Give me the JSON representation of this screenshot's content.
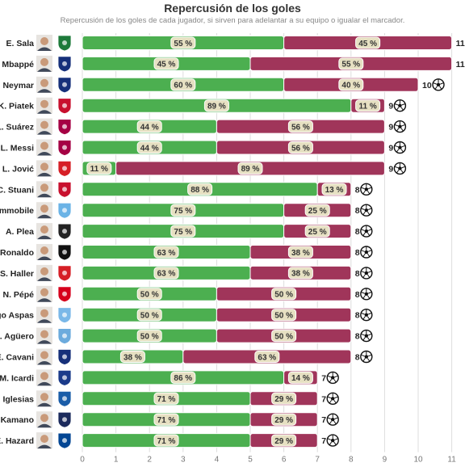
{
  "chart_data": {
    "type": "bar",
    "orientation": "horizontal",
    "stacked": true,
    "title": "Repercusión de los goles",
    "subtitle": "Repercusión de los goles de cada jugador, si sirven para adelantar a su equipo o igualar el marcador.",
    "categories": [
      "E. Sala",
      "Mbappé",
      "Neymar",
      "K. Piatek",
      "L. Suárez",
      "L. Messi",
      "L. Jović",
      "C. Stuani",
      "Immobile",
      "A. Plea",
      "Ronaldo",
      "S. Haller",
      "N. Pépé",
      "Iago Aspas",
      "S. Agüero",
      "E. Cavani",
      "M. Icardi",
      "Iglesias",
      "Kamano",
      "E. Hazard"
    ],
    "category_labels": [
      "E. Sala",
      "Mbappé",
      "Neymar",
      "K. Piatek",
      "L. Suárez",
      "L. Messi",
      "L. Jović",
      "C. Stuani",
      "mmobile",
      "A. Plea",
      "Ronaldo",
      "S. Haller",
      "N. Pépé",
      "go Aspas",
      ". Agüero",
      "E. Cavani",
      "M. Icardi",
      "Iglesias",
      "Kamano",
      "E. Hazard"
    ],
    "totals": [
      11,
      11,
      10,
      9,
      9,
      9,
      9,
      8,
      8,
      8,
      8,
      8,
      8,
      8,
      8,
      8,
      7,
      7,
      7,
      7
    ],
    "series": [
      {
        "values": [
          6,
          5,
          6,
          8,
          4,
          4,
          1,
          7,
          6,
          6,
          5,
          5,
          4,
          4,
          4,
          3,
          6,
          5,
          5,
          5
        ],
        "labels": [
          "55 %",
          "45 %",
          "60 %",
          "89 %",
          "44 %",
          "44 %",
          "11 %",
          "88 %",
          "75 %",
          "75 %",
          "63 %",
          "63 %",
          "50 %",
          "50 %",
          "50 %",
          "38 %",
          "86 %",
          "71 %",
          "71 %",
          "71 %"
        ]
      },
      {
        "values": [
          5,
          6,
          4,
          1,
          5,
          5,
          8,
          1,
          2,
          2,
          3,
          3,
          4,
          4,
          4,
          5,
          1,
          2,
          2,
          2
        ],
        "labels": [
          "45 %",
          "55 %",
          "40 %",
          "11 %",
          "56 %",
          "56 %",
          "89 %",
          "13 %",
          "25 %",
          "25 %",
          "38 %",
          "38 %",
          "50 %",
          "50 %",
          "50 %",
          "63 %",
          "14 %",
          "29 %",
          "29 %",
          "29 %"
        ]
      }
    ],
    "colors": {
      "green": "#4caf50",
      "red": "#a0355a",
      "label_bg": "#e6e0c2",
      "grid": "#dddddd"
    },
    "xlim": [
      0,
      11
    ],
    "x_ticks": [
      "0",
      "1",
      "2",
      "3",
      "4",
      "5",
      "6",
      "7",
      "8",
      "9",
      "10",
      "11"
    ],
    "grid": true,
    "ball_icon": "soccer-ball-icon"
  }
}
